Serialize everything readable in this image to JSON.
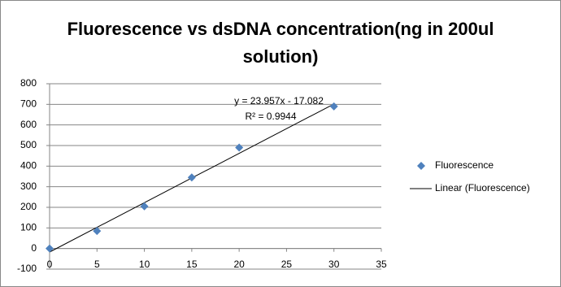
{
  "chart_data": {
    "type": "scatter",
    "title": "Fluorescence vs dsDNA concentration(ng in 200ul solution)",
    "series": [
      {
        "name": "Fluorescence",
        "color": "#4f81bd",
        "x": [
          0,
          5,
          10,
          15,
          20,
          30
        ],
        "values": [
          0,
          85,
          205,
          345,
          490,
          690
        ]
      }
    ],
    "trendline": {
      "name": "Linear (Fluorescence)",
      "color": "#000000",
      "slope": 23.957,
      "intercept": -17.082,
      "equation": "y = 23.957x - 17.082",
      "r2_label": "R² = 0.9944"
    },
    "xlim": [
      0,
      35
    ],
    "xticks": [
      0,
      5,
      10,
      15,
      20,
      25,
      30,
      35
    ],
    "ylim": [
      -100,
      800
    ],
    "yticks": [
      -100,
      0,
      100,
      200,
      300,
      400,
      500,
      600,
      700,
      800
    ],
    "grid": true,
    "legend": "right"
  }
}
